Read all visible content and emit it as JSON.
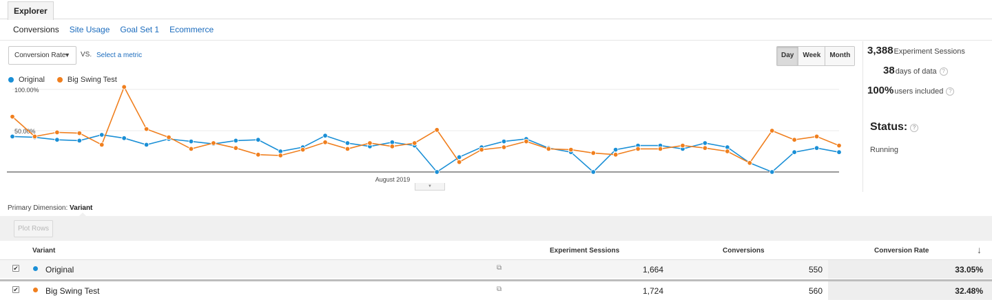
{
  "tabs": {
    "explorer_label": "Explorer"
  },
  "subtabs": [
    "Conversions",
    "Site Usage",
    "Goal Set 1",
    "Ecommerce"
  ],
  "metric": {
    "selected": "Conversion Rate",
    "vs_label": "VS.",
    "select_label": "Select a metric"
  },
  "period": {
    "options": [
      "Day",
      "Week",
      "Month"
    ],
    "selected": "Day"
  },
  "stats": {
    "sessions_value": "3,388",
    "sessions_label": "Experiment Sessions",
    "days_value": "38",
    "days_label": "days of data",
    "users_value": "100%",
    "users_label": "users included",
    "status_title": "Status:",
    "status_value": "Running"
  },
  "colors": {
    "original": "#1a8fd6",
    "variant": "#f07f1e"
  },
  "chart_data": {
    "type": "line",
    "series": [
      {
        "name": "Original",
        "values": [
          43,
          42,
          39,
          38,
          45,
          41,
          33,
          40,
          37,
          34,
          38,
          39,
          25,
          30,
          44,
          35,
          31,
          36,
          32,
          0,
          18,
          30,
          37,
          40,
          29,
          24,
          0,
          27,
          32,
          32,
          28,
          35,
          30,
          11,
          0,
          24,
          29,
          24
        ]
      },
      {
        "name": "Big Swing Test",
        "values": [
          67,
          43,
          48,
          47,
          33,
          103,
          52,
          42,
          28,
          35,
          29,
          21,
          20,
          27,
          36,
          28,
          35,
          31,
          35,
          51,
          12,
          27,
          30,
          37,
          28,
          27,
          23,
          21,
          28,
          28,
          32,
          29,
          25,
          11,
          50,
          39,
          43,
          32
        ]
      }
    ],
    "y_tick_labels": [
      "100.00%",
      "50.00%"
    ],
    "y_ticks": [
      100,
      50
    ],
    "ylim": [
      0,
      100
    ],
    "x_label": "August 2019"
  },
  "table": {
    "primary_dimension_label": "Primary Dimension:",
    "primary_dimension_value": "Variant",
    "plot_rows_label": "Plot Rows",
    "headers": {
      "variant": "Variant",
      "sessions": "Experiment Sessions",
      "conversions": "Conversions",
      "rate": "Conversion Rate"
    },
    "rows": [
      {
        "name": "Original",
        "sessions": "1,664",
        "conversions": "550",
        "rate": "33.05%"
      },
      {
        "name": "Big Swing Test",
        "sessions": "1,724",
        "conversions": "560",
        "rate": "32.48%"
      }
    ]
  }
}
